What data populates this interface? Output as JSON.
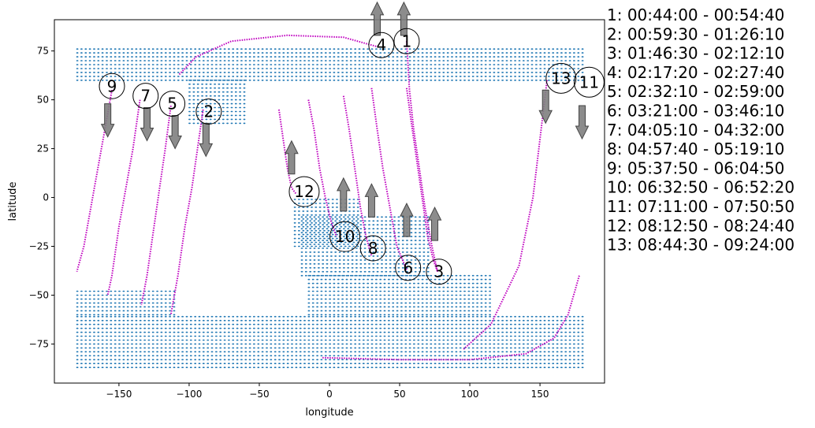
{
  "chart_data": {
    "type": "scatter",
    "xlabel": "longitude",
    "ylabel": "latitude",
    "xlim": [
      -196,
      196
    ],
    "ylim": [
      -95,
      91
    ],
    "xticks": [
      -150,
      -100,
      -50,
      0,
      50,
      100,
      150
    ],
    "yticks": [
      -75,
      -50,
      -25,
      0,
      25,
      50,
      75
    ],
    "grid": false,
    "colors": {
      "land_points": "#1f77b4",
      "track": "#bf00bf",
      "arrow": "#808080"
    },
    "land_regions": [
      {
        "lat": [
          60,
          76
        ],
        "lon": [
          -180,
          180
        ]
      },
      {
        "lat": [
          38,
          60
        ],
        "lon": [
          -100,
          -60
        ]
      },
      {
        "lat": [
          -87,
          -60
        ],
        "lon": [
          -180,
          180
        ]
      },
      {
        "lat": [
          -60,
          -48
        ],
        "lon": [
          -180,
          -110
        ]
      },
      {
        "lat": [
          -60,
          -40
        ],
        "lon": [
          -15,
          115
        ]
      },
      {
        "lat": [
          -40,
          -10
        ],
        "lon": [
          -20,
          70
        ]
      },
      {
        "lat": [
          -25,
          0
        ],
        "lon": [
          -25,
          20
        ]
      }
    ],
    "tracks": [
      {
        "pass": "1",
        "lon": [
          55,
          57,
          60,
          64,
          68,
          73,
          77
        ],
        "lat": [
          80,
          55,
          35,
          15,
          -5,
          -25,
          -38
        ],
        "dir": "up",
        "arrow_lon": 53,
        "arrow_lat": 83,
        "label_lon": 55,
        "label_lat": 80
      },
      {
        "pass": "2",
        "lon": [
          -90,
          -94,
          -98,
          -103,
          -108,
          -113
        ],
        "lat": [
          45,
          25,
          5,
          -15,
          -40,
          -60
        ],
        "dir": "down",
        "arrow_lon": -88,
        "arrow_lat": 38,
        "label_lon": -86,
        "label_lat": 44
      },
      {
        "pass": "3",
        "lon": [
          55,
          58,
          62,
          66,
          70,
          74,
          77
        ],
        "lat": [
          56,
          40,
          20,
          0,
          -20,
          -32,
          -38
        ],
        "dir": "up",
        "arrow_lon": 75,
        "arrow_lat": -22,
        "label_lon": 78,
        "label_lat": -38
      },
      {
        "pass": "4",
        "lon": [
          -107,
          -95,
          -70,
          -30,
          10,
          35
        ],
        "lat": [
          63,
          72,
          80,
          83,
          82,
          77
        ],
        "dir": "up",
        "arrow_lon": 34,
        "arrow_lat": 83,
        "label_lon": 37,
        "label_lat": 78
      },
      {
        "pass": "5",
        "lon": [
          -113,
          -117,
          -121,
          -125,
          -130,
          -134
        ],
        "lat": [
          47,
          25,
          5,
          -15,
          -40,
          -55
        ],
        "dir": "down",
        "arrow_lon": -110,
        "arrow_lat": 42,
        "label_lon": -112,
        "label_lat": 48
      },
      {
        "pass": "6",
        "lon": [
          30,
          34,
          38,
          43,
          48,
          55
        ],
        "lat": [
          56,
          35,
          15,
          -5,
          -25,
          -37
        ],
        "dir": "up",
        "arrow_lon": 55,
        "arrow_lat": -20,
        "label_lon": 56,
        "label_lat": -36
      },
      {
        "pass": "7",
        "lon": [
          -135,
          -140,
          -145,
          -150,
          -155,
          -158
        ],
        "lat": [
          50,
          25,
          5,
          -15,
          -40,
          -50
        ],
        "dir": "down",
        "arrow_lon": -130,
        "arrow_lat": 46,
        "label_lon": -131,
        "label_lat": 52
      },
      {
        "pass": "8",
        "lon": [
          10,
          14,
          18,
          22,
          26,
          30
        ],
        "lat": [
          52,
          35,
          15,
          -5,
          -20,
          -30
        ],
        "dir": "up",
        "arrow_lon": 30,
        "arrow_lat": -10,
        "label_lon": 31,
        "label_lat": -26
      },
      {
        "pass": "9",
        "lon": [
          -155,
          -160,
          -165,
          -170,
          -175,
          -180
        ],
        "lat": [
          55,
          35,
          15,
          -5,
          -25,
          -38
        ],
        "dir": "down",
        "arrow_lon": -158,
        "arrow_lat": 48,
        "label_lon": -155,
        "label_lat": 57
      },
      {
        "pass": "10",
        "lon": [
          -15,
          -11,
          -7,
          -3,
          1,
          5
        ],
        "lat": [
          50,
          35,
          15,
          0,
          -12,
          -20
        ],
        "dir": "up",
        "arrow_lon": 10,
        "arrow_lat": -7,
        "label_lon": 11,
        "label_lat": -20
      },
      {
        "pass": "11",
        "lon": [
          178,
          170,
          160,
          140,
          100,
          50,
          -5
        ],
        "lat": [
          -40,
          -60,
          -72,
          -80,
          -83,
          -83,
          -82
        ],
        "dir": "down",
        "arrow_lon": 180,
        "arrow_lat": 47,
        "label_lon": 185,
        "label_lat": 59
      },
      {
        "pass": "12",
        "lon": [
          -36,
          -33,
          -30,
          -27,
          -24
        ],
        "lat": [
          45,
          30,
          15,
          5,
          2
        ],
        "dir": "up",
        "arrow_lon": -27,
        "arrow_lat": 12,
        "label_lon": -18,
        "label_lat": 3
      },
      {
        "pass": "13",
        "lon": [
          155,
          150,
          145,
          135,
          115,
          95
        ],
        "lat": [
          60,
          30,
          0,
          -35,
          -65,
          -78
        ],
        "dir": "down",
        "arrow_lon": 154,
        "arrow_lat": 55,
        "label_lon": 165,
        "label_lat": 61
      }
    ],
    "legend": [
      {
        "pass": "1",
        "start": "00:44:00",
        "end": "00:54:40"
      },
      {
        "pass": "2",
        "start": "00:59:30",
        "end": "01:26:10"
      },
      {
        "pass": "3",
        "start": "01:46:30",
        "end": "02:12:10"
      },
      {
        "pass": "4",
        "start": "02:17:20",
        "end": "02:27:40"
      },
      {
        "pass": "5",
        "start": "02:32:10",
        "end": "02:59:00"
      },
      {
        "pass": "6",
        "start": "03:21:00",
        "end": "03:46:10"
      },
      {
        "pass": "7",
        "start": "04:05:10",
        "end": "04:32:00"
      },
      {
        "pass": "8",
        "start": "04:57:40",
        "end": "05:19:10"
      },
      {
        "pass": "9",
        "start": "05:37:50",
        "end": "06:04:50"
      },
      {
        "pass": "10",
        "start": "06:32:50",
        "end": "06:52:20"
      },
      {
        "pass": "11",
        "start": "07:11:00",
        "end": "07:50:50"
      },
      {
        "pass": "12",
        "start": "08:12:50",
        "end": "08:24:40"
      },
      {
        "pass": "13",
        "start": "08:44:30",
        "end": "09:24:00"
      }
    ]
  }
}
